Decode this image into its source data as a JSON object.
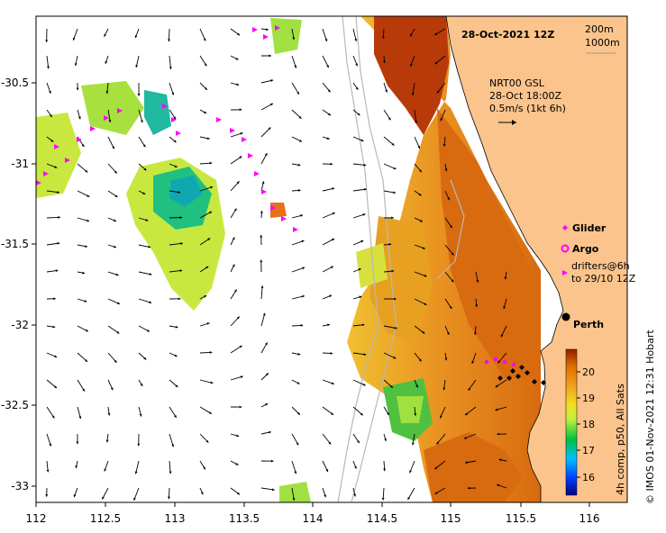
{
  "map": {
    "title_date": "28-Oct-2021 12Z",
    "contours": [
      "200m",
      "1000m"
    ],
    "current_source": "NRT00 GSL",
    "current_time": "28-Oct 18:00Z",
    "current_scale": "0.5m/s (1kt 6h)",
    "city": "Perth",
    "credit": "© IMOS 01-Nov-2021 12:31 Hobart",
    "colorbar_label": "4h comp, p50, All Sats",
    "colorbar_ticks": [
      "16",
      "17",
      "18",
      "19",
      "20"
    ],
    "legend": {
      "glider": "Glider",
      "argo": "Argo",
      "drifters_line1": "drifters@6h",
      "drifters_line2": "to 29/10 12Z"
    },
    "x_ticks": [
      "112",
      "112.5",
      "113",
      "113.5",
      "114",
      "114.5",
      "115",
      "115.5",
      "116"
    ],
    "y_ticks": [
      "-30.5",
      "-31",
      "-31.5",
      "-32",
      "-32.5",
      "-33"
    ],
    "colors": {
      "land": "#fbc48c",
      "glider": "#ff00ff",
      "argo": "#ff00ff",
      "drifters": "#ff00ff"
    }
  }
}
